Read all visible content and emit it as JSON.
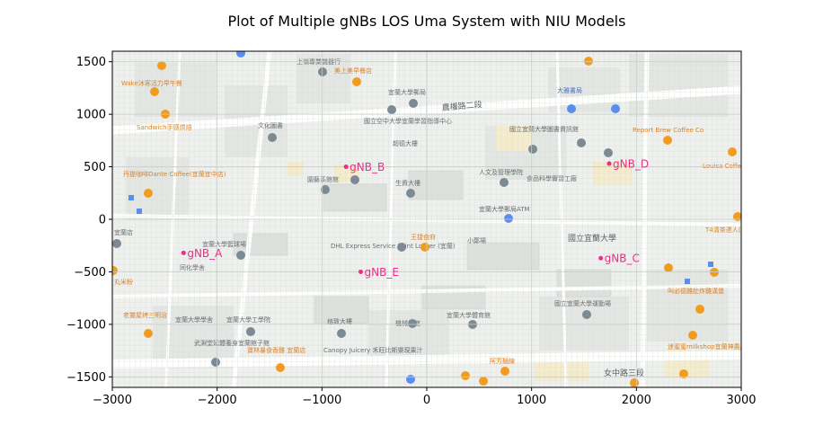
{
  "chart_data": {
    "type": "scatter",
    "title": "Plot of Multiple gNBs LOS Uma System with NIU Models",
    "xlabel": "",
    "ylabel": "",
    "xlim": [
      -3000,
      3000
    ],
    "ylim": [
      -1600,
      1600
    ],
    "x_ticks": [
      -3000,
      -2000,
      -1000,
      0,
      1000,
      2000,
      3000
    ],
    "x_tick_labels": [
      "−3000",
      "−2000",
      "−1000",
      "0",
      "1000",
      "2000",
      "3000"
    ],
    "y_ticks": [
      1500,
      1000,
      500,
      0,
      -500,
      -1000,
      -1500
    ],
    "y_tick_labels": [
      "1500",
      "1000",
      "500",
      "0",
      "−500",
      "−1000",
      "−1500"
    ],
    "grid": true,
    "background": "street map",
    "marker_color": "#e8308a",
    "points": [
      {
        "label": "gNB_A",
        "x": -2320,
        "y": -320
      },
      {
        "label": "gNB_B",
        "x": -770,
        "y": 500
      },
      {
        "label": "gNB_C",
        "x": 1660,
        "y": -370
      },
      {
        "label": "gNB_D",
        "x": 1740,
        "y": 530
      },
      {
        "label": "gNB_E",
        "x": -630,
        "y": -500
      }
    ]
  },
  "map": {
    "labels": [
      {
        "text": "上嶺專業機器行",
        "kind": "gray"
      },
      {
        "text": "美上美早餐店",
        "kind": "orange"
      },
      {
        "text": "Wake沐客活力早午餐",
        "kind": "orange"
      },
      {
        "text": "Sandwich手感烘焙",
        "kind": "orange"
      },
      {
        "text": "文化圖書",
        "kind": "gray"
      },
      {
        "text": "宜蘭大學郵局",
        "kind": "gray"
      },
      {
        "text": "農權路二段",
        "kind": "big"
      },
      {
        "text": "國立空中大學宜蘭學習指導中心",
        "kind": "gray"
      },
      {
        "text": "超德大樓",
        "kind": "gray"
      },
      {
        "text": "國立宜蘭大學圖書資訊館",
        "kind": "gray"
      },
      {
        "text": "Report Brew Coffee Co",
        "kind": "orange"
      },
      {
        "text": "Louisa Coffee",
        "kind": "orange"
      },
      {
        "text": "丹提咖啡Dante Coffee(宜蘭宜中店)",
        "kind": "orange"
      },
      {
        "text": "園藝系館館",
        "kind": "gray"
      },
      {
        "text": "生資大樓",
        "kind": "gray"
      },
      {
        "text": "人文及管理學院",
        "kind": "gray"
      },
      {
        "text": "食品科學實習工廠",
        "kind": "gray"
      },
      {
        "text": "宜蘭大學郵局ATM",
        "kind": "gray"
      },
      {
        "text": "國立宜蘭大學",
        "kind": "big"
      },
      {
        "text": "宜蘭大學籃球場",
        "kind": "gray"
      },
      {
        "text": "DHL Express Service Point Locker (宜蘭)",
        "kind": "gray"
      },
      {
        "text": "王捷食府",
        "kind": "orange"
      },
      {
        "text": "宜蘭大學工學院",
        "kind": "gray"
      },
      {
        "text": "格致大樓",
        "kind": "gray"
      },
      {
        "text": "宜蘭大學體育館",
        "kind": "gray"
      },
      {
        "text": "國立宜蘭大學運動場",
        "kind": "gray"
      },
      {
        "text": "老饕屋烤三明治",
        "kind": "orange"
      },
      {
        "text": "武淵堂延體養身宜蘭館子館",
        "kind": "gray"
      },
      {
        "text": "寶林暴食香雞 宜蘭店",
        "kind": "orange"
      },
      {
        "text": "Canopy Juicery 禾旺比斯樂現果汁",
        "kind": "gray"
      },
      {
        "text": "阿芳麵線",
        "kind": "orange"
      },
      {
        "text": "女中路三段",
        "kind": "big"
      },
      {
        "text": "迷蜜蜜milkshop宜蘭神農店",
        "kind": "orange"
      },
      {
        "text": "叫必德雞肚炸雞漢堡",
        "kind": "orange"
      },
      {
        "text": "T4清茶達人(宜蘭神農店)",
        "kind": "orange"
      },
      {
        "text": "大雅書局",
        "kind": "blue"
      },
      {
        "text": "小鄭場",
        "kind": "gray"
      },
      {
        "text": "同化學舍",
        "kind": "gray"
      },
      {
        "text": "宜蘭大學學舍",
        "kind": "gray"
      },
      {
        "text": "機械系館",
        "kind": "gray"
      },
      {
        "text": "丸米粉",
        "kind": "orange"
      },
      {
        "text": "宜蘭店",
        "kind": "gray"
      }
    ]
  }
}
